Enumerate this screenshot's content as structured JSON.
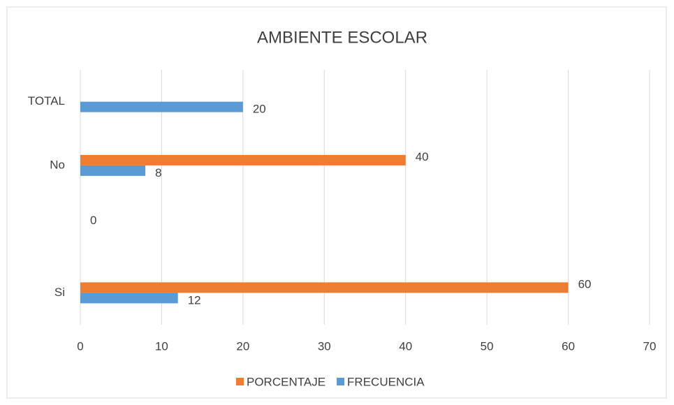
{
  "chart_data": {
    "type": "bar",
    "orientation": "horizontal",
    "title": "AMBIENTE ESCOLAR",
    "categories": [
      "Si",
      null,
      "No",
      "TOTAL"
    ],
    "series": [
      {
        "name": "PORCENTAJE",
        "color": "#ed7d31",
        "values": [
          60,
          0,
          40,
          null
        ]
      },
      {
        "name": "FRECUENCIA",
        "color": "#5b9bd5",
        "values": [
          12,
          null,
          8,
          20
        ]
      }
    ],
    "xlim": [
      0,
      70
    ],
    "xticks": [
      0,
      10,
      20,
      30,
      40,
      50,
      60,
      70
    ],
    "grid": true,
    "legend": "bottom"
  }
}
